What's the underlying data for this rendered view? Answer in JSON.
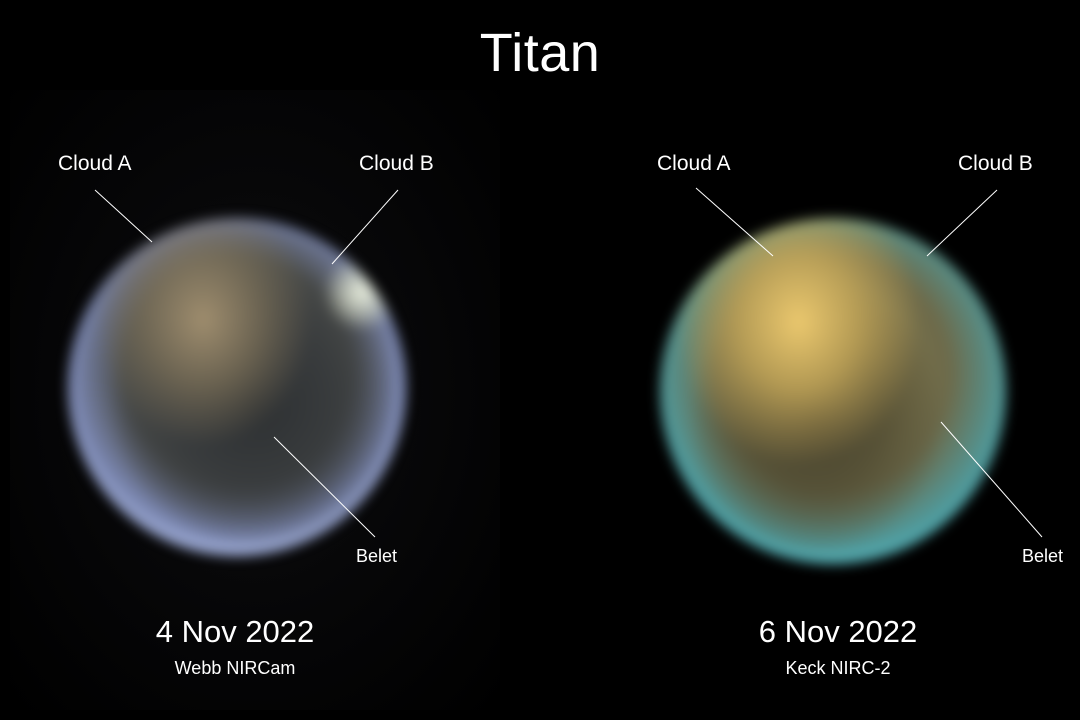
{
  "title": "Titan",
  "panels": [
    {
      "date": "4 Nov 2022",
      "instrument": "Webb NIRCam",
      "labels": {
        "cloud_a": "Cloud A",
        "cloud_b": "Cloud B",
        "belet": "Belet"
      }
    },
    {
      "date": "6 Nov 2022",
      "instrument": "Keck NIRC-2",
      "labels": {
        "cloud_a": "Cloud A",
        "cloud_b": "Cloud B",
        "belet": "Belet"
      }
    }
  ]
}
